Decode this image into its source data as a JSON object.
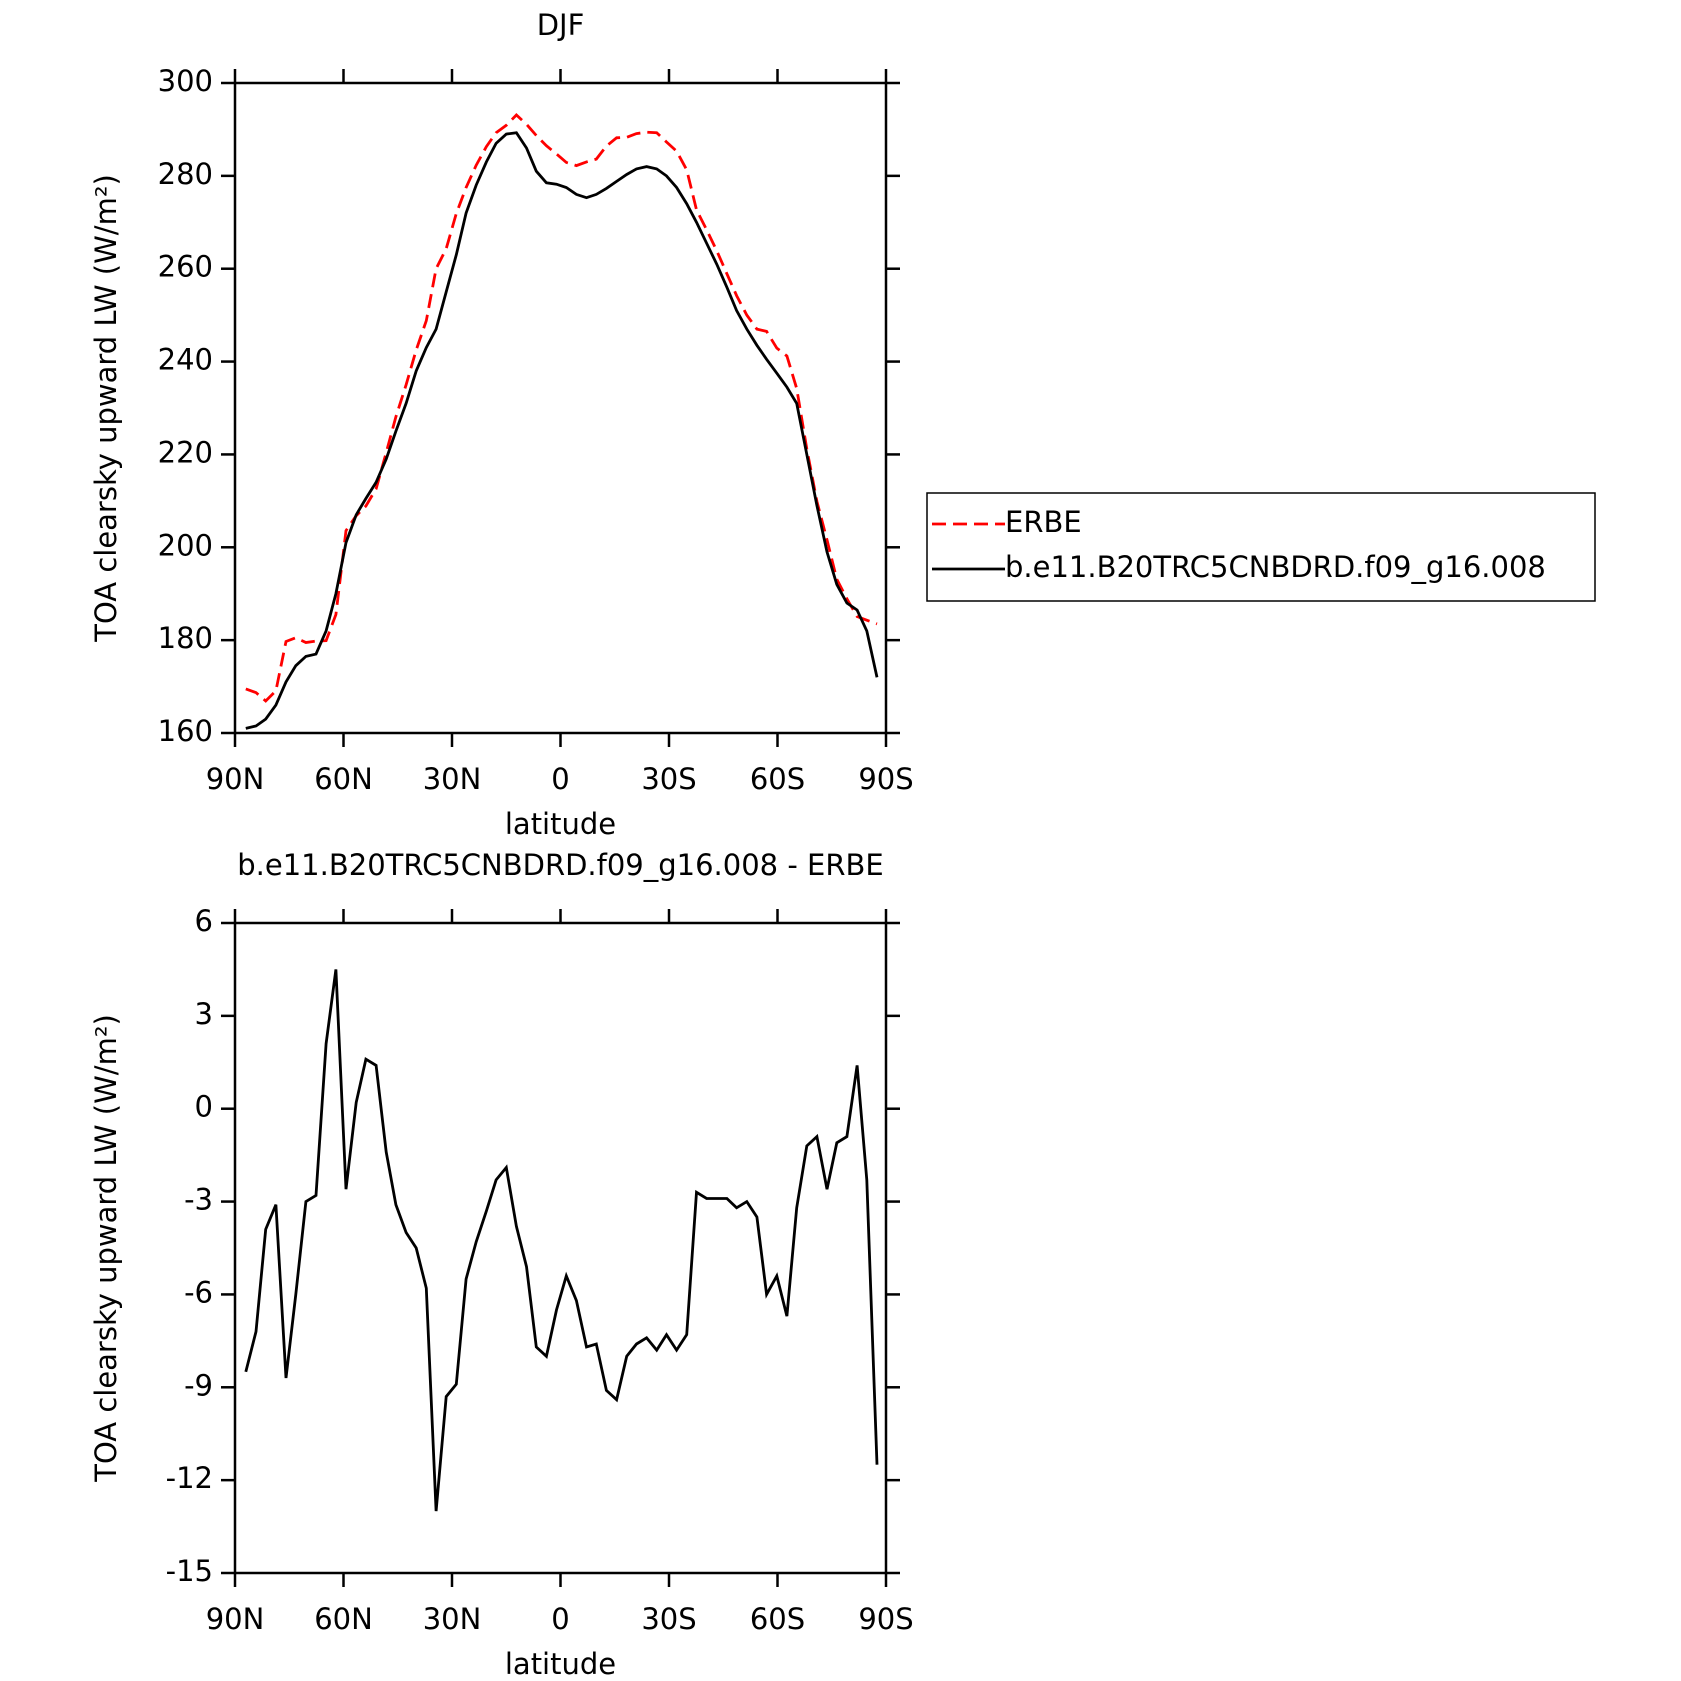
{
  "chart_data": [
    {
      "type": "line",
      "title": "DJF",
      "ylabel": "TOA clearsky upward LW (W/m²)",
      "xlabel": "latitude",
      "x": [
        87.0,
        84.2,
        81.5,
        78.7,
        75.9,
        73.2,
        70.4,
        67.6,
        64.8,
        62.1,
        59.3,
        56.5,
        53.8,
        51.0,
        48.2,
        45.5,
        42.7,
        39.9,
        37.1,
        34.4,
        31.6,
        28.8,
        26.1,
        23.3,
        20.5,
        17.8,
        15.0,
        12.2,
        9.4,
        6.7,
        3.9,
        1.1,
        -1.6,
        -4.4,
        -7.2,
        -9.9,
        -12.7,
        -15.5,
        -18.3,
        -21.0,
        -23.8,
        -26.6,
        -29.3,
        -32.1,
        -34.9,
        -37.6,
        -40.4,
        -43.2,
        -46.0,
        -48.7,
        -51.5,
        -54.3,
        -57.0,
        -59.8,
        -62.6,
        -65.3,
        -68.1,
        -70.9,
        -73.7,
        -76.4,
        -79.2,
        -82.0,
        -84.7,
        -87.5
      ],
      "xlim": [
        90,
        -90
      ],
      "xticks": [
        {
          "value": 90,
          "label": "90N"
        },
        {
          "value": 60,
          "label": "60N"
        },
        {
          "value": 30,
          "label": "30N"
        },
        0,
        {
          "value": -30,
          "label": "30S"
        },
        {
          "value": -60,
          "label": "60S"
        },
        {
          "value": -90,
          "label": "90S"
        }
      ],
      "ylim": [
        160,
        300
      ],
      "yticks": [
        160,
        180,
        200,
        220,
        240,
        260,
        280,
        300
      ],
      "legend": "right",
      "series": [
        {
          "name": "ERBE",
          "color": "#ff0000",
          "style": "dashed",
          "values": [
            169.5,
            168.7,
            166.9,
            169.1,
            179.7,
            180.5,
            179.5,
            179.8,
            179.9,
            185.5,
            203.6,
            206.8,
            208.9,
            212.6,
            220.4,
            228.1,
            235,
            242.5,
            248.8,
            260,
            264.3,
            271.9,
            277.5,
            282.3,
            286.3,
            289.3,
            290.9,
            293.1,
            291.1,
            288.7,
            286.5,
            284.7,
            282.9,
            282.2,
            283,
            283.6,
            286.4,
            288.2,
            288.3,
            289.1,
            289.4,
            289.3,
            287.3,
            285.3,
            281.3,
            272.7,
            268.4,
            263.9,
            258.9,
            254.2,
            250,
            247,
            246.5,
            242.9,
            241.2,
            234.2,
            221.2,
            209.9,
            201.6,
            193.1,
            188.9,
            185.1,
            184.3,
            183.5
          ]
        },
        {
          "name": "b.e11.B20TRC5CNBDRD.f09_g16.008",
          "color": "#000000",
          "style": "solid",
          "values": [
            161,
            161.5,
            163,
            166,
            171,
            174.5,
            176.5,
            177,
            182,
            190,
            201,
            207,
            210.5,
            214,
            219,
            225,
            231,
            238,
            243,
            247,
            255,
            263,
            272,
            278,
            283,
            287,
            289,
            289.3,
            286,
            281,
            278.5,
            278.2,
            277.5,
            276,
            275.3,
            276,
            277.3,
            278.8,
            280.3,
            281.5,
            282,
            281.5,
            280,
            277.5,
            274,
            270,
            265.5,
            261,
            256,
            251,
            247,
            243.5,
            240.5,
            237.5,
            234.5,
            231,
            220,
            209,
            199,
            192,
            188,
            186.5,
            182,
            172
          ]
        }
      ]
    },
    {
      "type": "line",
      "title": "b.e11.B20TRC5CNBDRD.f09_g16.008 - ERBE",
      "ylabel": "TOA clearsky upward LW (W/m²)",
      "xlabel": "latitude",
      "x": [
        87.0,
        84.2,
        81.5,
        78.7,
        75.9,
        73.2,
        70.4,
        67.6,
        64.8,
        62.1,
        59.3,
        56.5,
        53.8,
        51.0,
        48.2,
        45.5,
        42.7,
        39.9,
        37.1,
        34.4,
        31.6,
        28.8,
        26.1,
        23.3,
        20.5,
        17.8,
        15.0,
        12.2,
        9.4,
        6.7,
        3.9,
        1.1,
        -1.6,
        -4.4,
        -7.2,
        -9.9,
        -12.7,
        -15.5,
        -18.3,
        -21.0,
        -23.8,
        -26.6,
        -29.3,
        -32.1,
        -34.9,
        -37.6,
        -40.4,
        -43.2,
        -46.0,
        -48.7,
        -51.5,
        -54.3,
        -57.0,
        -59.8,
        -62.6,
        -65.3,
        -68.1,
        -70.9,
        -73.7,
        -76.4,
        -79.2,
        -82.0,
        -84.7,
        -87.5
      ],
      "xlim": [
        90,
        -90
      ],
      "xticks": [
        {
          "value": 90,
          "label": "90N"
        },
        {
          "value": 60,
          "label": "60N"
        },
        {
          "value": 30,
          "label": "30N"
        },
        0,
        {
          "value": -30,
          "label": "30S"
        },
        {
          "value": -60,
          "label": "60S"
        },
        {
          "value": -90,
          "label": "90S"
        }
      ],
      "ylim": [
        -15,
        6
      ],
      "yticks": [
        -15,
        -12,
        -9,
        -6,
        -3,
        0,
        3,
        6
      ],
      "color": "#000000",
      "values": [
        -8.5,
        -7.2,
        -3.9,
        -3.1,
        -8.7,
        -6,
        -3,
        -2.8,
        2.1,
        4.5,
        -2.6,
        0.2,
        1.6,
        1.4,
        -1.4,
        -3.1,
        -4,
        -4.5,
        -5.8,
        -13,
        -9.3,
        -8.9,
        -5.5,
        -4.3,
        -3.3,
        -2.3,
        -1.9,
        -3.8,
        -5.1,
        -7.7,
        -8,
        -6.5,
        -5.4,
        -6.2,
        -7.7,
        -7.6,
        -9.1,
        -9.4,
        -8,
        -7.6,
        -7.4,
        -7.8,
        -7.3,
        -7.8,
        -7.3,
        -2.7,
        -2.9,
        -2.9,
        -2.9,
        -3.2,
        -3,
        -3.5,
        -6,
        -5.4,
        -6.7,
        -3.2,
        -1.2,
        -0.9,
        -2.6,
        -1.1,
        -0.9,
        1.4,
        -2.3,
        -11.5
      ]
    }
  ]
}
